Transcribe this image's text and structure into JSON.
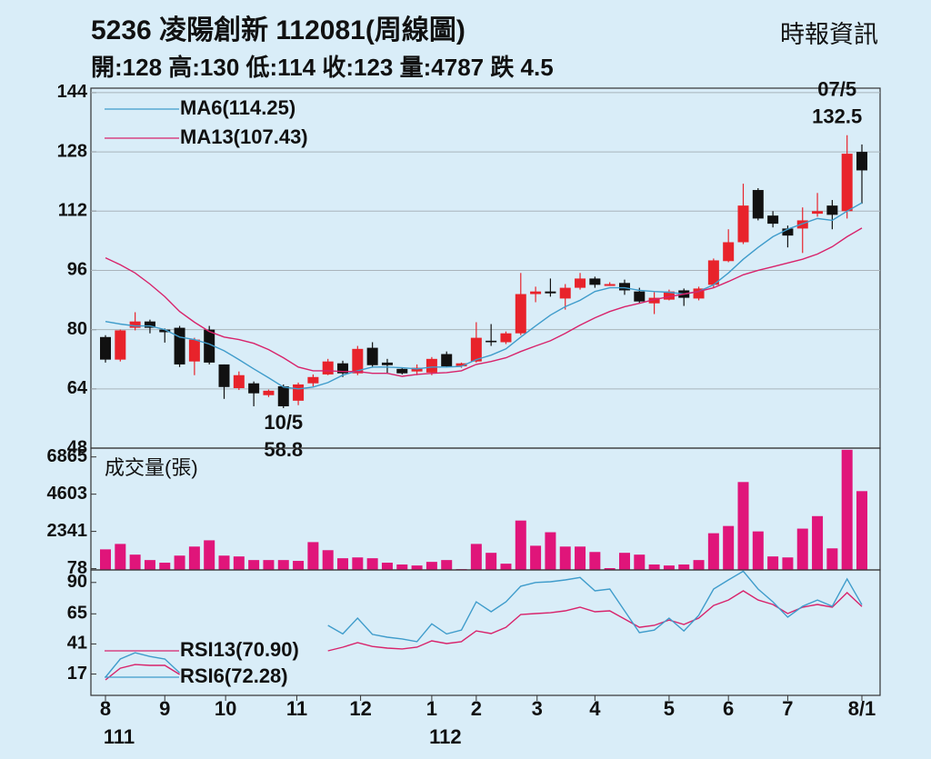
{
  "header": {
    "title": "5236  凌陽創新 112081(周線圖)",
    "source": "時報資訊",
    "quote": "開:128 高:130 低:114 收:123 量:4787 跌 4.5"
  },
  "chart_data": [
    {
      "type": "candlestick",
      "open": [
        78.0,
        71.9,
        80.5,
        82.2,
        80.0,
        80.5,
        71.4,
        80.0,
        70.6,
        64.2,
        65.5,
        62.3,
        64.7,
        60.8,
        65.5,
        67.9,
        70.9,
        68.2,
        75.1,
        71.1,
        69.4,
        68.7,
        68.4,
        73.4,
        70.1,
        71.4,
        77.0,
        76.6,
        79.0,
        89.6,
        90.3,
        88.4,
        91.3,
        93.8,
        91.8,
        92.6,
        90.3,
        87.1,
        88.1,
        90.6,
        88.4,
        92.1,
        98.5,
        103.6,
        117.7,
        110.8,
        107.3,
        107.3,
        111.3,
        113.5,
        112.0,
        128
      ],
      "high": [
        78.5,
        80.0,
        84.7,
        82.7,
        80.3,
        81.0,
        77.8,
        81.0,
        70.6,
        68.7,
        66.0,
        63.8,
        65.2,
        65.7,
        67.9,
        72.1,
        71.6,
        75.6,
        76.6,
        72.1,
        69.7,
        70.6,
        72.6,
        74.1,
        71.1,
        82.0,
        81.5,
        79.5,
        95.3,
        91.6,
        93.8,
        92.3,
        95.3,
        94.3,
        92.8,
        93.5,
        91.3,
        90.1,
        90.8,
        91.1,
        91.6,
        99.2,
        107.1,
        119.4,
        118.2,
        112.0,
        108.1,
        113.0,
        116.9,
        115.0,
        132.5,
        130
      ],
      "low": [
        71.1,
        71.4,
        79.8,
        79.0,
        76.5,
        69.9,
        67.7,
        70.6,
        61.3,
        63.7,
        59.3,
        61.8,
        58.8,
        59.6,
        64.7,
        67.7,
        67.2,
        67.7,
        69.7,
        68.2,
        67.9,
        67.7,
        67.7,
        69.9,
        69.7,
        71.1,
        75.6,
        76.1,
        78.5,
        87.4,
        88.9,
        85.4,
        90.8,
        91.3,
        91.8,
        89.4,
        87.1,
        84.2,
        87.9,
        86.4,
        87.9,
        91.3,
        98.2,
        103.1,
        109.5,
        107.6,
        102.2,
        100.7,
        110.5,
        107.1,
        110.0,
        114
      ],
      "close": [
        71.9,
        79.8,
        82.2,
        80.5,
        79.3,
        70.6,
        77.3,
        71.1,
        64.5,
        67.7,
        62.8,
        63.5,
        59.3,
        65.2,
        67.2,
        71.4,
        68.2,
        74.8,
        70.4,
        70.4,
        68.2,
        69.7,
        72.1,
        70.1,
        70.9,
        77.8,
        76.6,
        79.0,
        89.6,
        90.3,
        89.8,
        91.3,
        93.8,
        92.1,
        92.3,
        90.6,
        87.6,
        88.6,
        90.3,
        88.6,
        91.1,
        98.7,
        103.6,
        113.5,
        110.0,
        108.6,
        105.4,
        109.5,
        112.0,
        111.0,
        127.5,
        123
      ],
      "up_color": "#e8232b",
      "down_color": "#111111",
      "series": [
        {
          "name": "MA6(114.25)",
          "color": "#3f9ccb",
          "values": [
            82.2,
            81.5,
            81.0,
            81.0,
            80.0,
            78.0,
            77.3,
            76.1,
            74.3,
            71.9,
            69.4,
            67.0,
            64.5,
            64.0,
            64.5,
            65.7,
            67.7,
            68.9,
            69.9,
            69.9,
            69.7,
            69.4,
            69.9,
            69.9,
            70.1,
            71.9,
            73.1,
            74.8,
            78.0,
            81.0,
            83.9,
            86.2,
            87.9,
            90.3,
            91.3,
            91.3,
            90.6,
            90.3,
            90.1,
            89.6,
            90.3,
            92.1,
            95.3,
            99.0,
            102.2,
            105.1,
            107.1,
            108.6,
            110.0,
            109.5,
            112.0,
            114.25
          ]
        },
        {
          "name": "MA13(107.43)",
          "color": "#d8236b",
          "values": [
            99.4,
            97.5,
            95.3,
            92.3,
            88.9,
            84.9,
            82.0,
            79.5,
            78.0,
            77.3,
            76.3,
            74.6,
            72.4,
            69.9,
            68.9,
            68.9,
            68.7,
            68.7,
            68.2,
            68.2,
            67.4,
            67.9,
            68.2,
            68.4,
            68.9,
            70.6,
            71.4,
            72.4,
            74.1,
            75.6,
            77.0,
            79.0,
            81.2,
            83.2,
            84.9,
            86.2,
            87.1,
            88.1,
            88.9,
            89.6,
            90.3,
            91.3,
            93.0,
            94.8,
            96.0,
            97.0,
            98.0,
            99.0,
            100.4,
            102.4,
            105.1,
            107.43
          ]
        }
      ],
      "legend": "upper left",
      "annotations": [
        {
          "label": "07/5",
          "value": 132.5
        },
        {
          "label": "10/5",
          "value": 58.8
        }
      ],
      "ylim": [
        48,
        145.2
      ],
      "yticks": [
        48,
        64,
        80,
        96,
        112,
        128,
        144
      ],
      "grid": true
    },
    {
      "type": "bar",
      "title": "成交量(張)",
      "color": "#e0157a",
      "values": [
        1250,
        1580,
        930,
        600,
        440,
        870,
        1420,
        1800,
        870,
        820,
        600,
        600,
        600,
        550,
        1690,
        1200,
        710,
        760,
        710,
        440,
        330,
        270,
        490,
        600,
        50,
        1580,
        1040,
        380,
        3000,
        1470,
        2290,
        1420,
        1420,
        1090,
        110,
        1040,
        930,
        330,
        270,
        330,
        600,
        2230,
        2670,
        5340,
        2340,
        820,
        760,
        2510,
        3270,
        1310,
        7300,
        4787
      ],
      "ylim": [
        0,
        7400
      ],
      "yticks": [
        78,
        2341,
        4603,
        6865
      ],
      "grid": false
    },
    {
      "type": "line",
      "series": [
        {
          "name": "RSI13(70.90)",
          "color": "#d8236b",
          "values": [
            12.3,
            21.7,
            24.6,
            23.9,
            23.9,
            16.7,
            null,
            null,
            null,
            null,
            null,
            null,
            null,
            null,
            null,
            35.5,
            38.4,
            42,
            39,
            37.7,
            37,
            38.4,
            43.5,
            41.3,
            42.8,
            51.4,
            49.3,
            54.3,
            64.5,
            65.2,
            65.9,
            67.4,
            70.3,
            66.7,
            67.4,
            60.9,
            54.3,
            55.8,
            60.1,
            56.5,
            61.6,
            71.7,
            76,
            83.3,
            76,
            72.5,
            65.2,
            70.3,
            72.5,
            70.3,
            81.9,
            70.9
          ]
        },
        {
          "name": "RSI6(72.28)",
          "color": "#3f9ccb",
          "values": [
            14.5,
            29,
            34,
            31,
            29,
            18,
            null,
            null,
            null,
            null,
            null,
            null,
            null,
            null,
            null,
            55.8,
            49,
            61.6,
            48.6,
            46.4,
            45,
            42.8,
            57,
            49,
            52,
            74.6,
            66.7,
            74.6,
            87,
            90,
            90.6,
            92,
            94,
            83.3,
            84.8,
            67.4,
            50,
            52,
            61.6,
            51.4,
            63.8,
            84.8,
            92,
            99,
            84.8,
            74.6,
            62.3,
            71,
            76,
            71,
            92.8,
            72.28
          ]
        }
      ],
      "legend": "lower left",
      "ylim": [
        0,
        100
      ],
      "yticks": [
        17,
        41,
        65,
        90
      ],
      "grid": false,
      "xticks": [
        {
          "value": 0,
          "label": "8"
        },
        {
          "value": 4,
          "label": "9"
        },
        {
          "value": 8.1,
          "label": "10"
        },
        {
          "value": 12.9,
          "label": "11"
        },
        {
          "value": 17.2,
          "label": "12"
        },
        {
          "value": 22,
          "label": "1"
        },
        {
          "value": 25,
          "label": "2"
        },
        {
          "value": 29.1,
          "label": "3"
        },
        {
          "value": 33,
          "label": "4"
        },
        {
          "value": 38,
          "label": "5"
        },
        {
          "value": 42,
          "label": "6"
        },
        {
          "value": 46,
          "label": "7"
        },
        {
          "value": 51,
          "label": "8/1"
        }
      ],
      "year_labels": [
        {
          "value": 0,
          "label": "111"
        },
        {
          "value": 22,
          "label": "112"
        }
      ]
    }
  ]
}
